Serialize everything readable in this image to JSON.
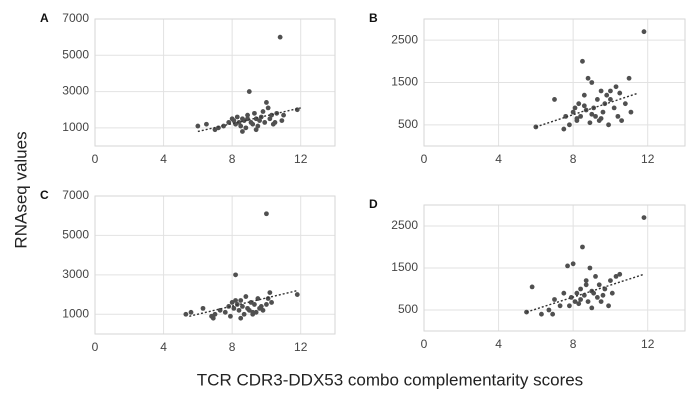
{
  "figure": {
    "ylabel": "RNAseq values",
    "xlabel": "TCR CDR3-DDX53 combo complementarity scores"
  },
  "chart_data": [
    {
      "type": "scatter",
      "title": "A",
      "color": "#505050",
      "grid": true,
      "xlim": [
        0,
        14
      ],
      "xticks": [
        0,
        4,
        8,
        12
      ],
      "ylim": [
        0,
        7000
      ],
      "yticks": [
        1000,
        3000,
        5000,
        7000
      ],
      "x": [
        6,
        6.5,
        7.2,
        7.5,
        7.8,
        8,
        8.1,
        8.2,
        8.3,
        8.4,
        8.5,
        8.6,
        8.7,
        8.8,
        8.9,
        9,
        9.1,
        9.2,
        9.3,
        9.4,
        9.5,
        9.6,
        9.7,
        9.8,
        9.9,
        10,
        10.1,
        10.2,
        10.3,
        10.5,
        10.6,
        10.8,
        10.9,
        11,
        11.8,
        7,
        8.6,
        9.4,
        10.4,
        8.9
      ],
      "values": [
        1100,
        1200,
        1000,
        1100,
        1300,
        1500,
        1400,
        1200,
        1600,
        1300,
        1100,
        1500,
        1400,
        1000,
        1700,
        3000,
        1300,
        1200,
        1800,
        1500,
        1100,
        1400,
        1600,
        1900,
        1300,
        2400,
        2100,
        1500,
        1700,
        1300,
        1800,
        6000,
        1400,
        1700,
        2000,
        900,
        800,
        900,
        1200,
        1500
      ],
      "trendline": {
        "x": [
          6,
          12
        ],
        "values": [
          800,
          2100
        ]
      }
    },
    {
      "type": "scatter",
      "title": "B",
      "color": "#505050",
      "grid": true,
      "xlim": [
        0,
        14
      ],
      "xticks": [
        0,
        4,
        8,
        12
      ],
      "ylim": [
        0,
        3000
      ],
      "yticks": [
        500,
        1500,
        2500
      ],
      "x": [
        6,
        7,
        7.5,
        7.8,
        8,
        8.1,
        8.2,
        8.3,
        8.4,
        8.5,
        8.6,
        8.7,
        8.8,
        8.9,
        9,
        9.1,
        9.2,
        9.3,
        9.4,
        9.5,
        9.6,
        9.7,
        9.8,
        9.9,
        10,
        10.2,
        10.3,
        10.4,
        10.5,
        10.6,
        10.8,
        11,
        11.1,
        11.8,
        8.2,
        9,
        8.6,
        7.6,
        10,
        9.5
      ],
      "values": [
        450,
        1100,
        400,
        500,
        800,
        900,
        600,
        1000,
        700,
        2000,
        1200,
        850,
        1600,
        550,
        1500,
        900,
        700,
        1100,
        600,
        1300,
        800,
        1000,
        1200,
        500,
        1100,
        900,
        1400,
        700,
        1250,
        600,
        1000,
        1600,
        800,
        2700,
        650,
        750,
        950,
        700,
        1300,
        650
      ],
      "trendline": {
        "x": [
          6,
          11.5
        ],
        "values": [
          450,
          1250
        ]
      }
    },
    {
      "type": "scatter",
      "title": "C",
      "color": "#505050",
      "grid": true,
      "xlim": [
        0,
        14
      ],
      "xticks": [
        0,
        4,
        8,
        12
      ],
      "ylim": [
        0,
        7000
      ],
      "yticks": [
        1000,
        3000,
        5000,
        7000
      ],
      "x": [
        5.3,
        5.6,
        6.3,
        6.8,
        7,
        7.3,
        7.6,
        7.8,
        8,
        8.1,
        8.2,
        8.3,
        8.4,
        8.5,
        8.6,
        8.7,
        8.8,
        8.9,
        9,
        9.1,
        9.2,
        9.3,
        9.4,
        9.5,
        9.6,
        9.8,
        10,
        10,
        10.1,
        10.2,
        10.3,
        11.8,
        7.9,
        8.5,
        9.2,
        6.9,
        8.2,
        9.7
      ],
      "values": [
        1000,
        1100,
        1300,
        900,
        1000,
        1200,
        1100,
        1400,
        1600,
        1300,
        3000,
        1500,
        1200,
        1700,
        1400,
        1000,
        1900,
        1300,
        1200,
        1600,
        1000,
        1500,
        1100,
        1800,
        1300,
        1200,
        6100,
        1500,
        1800,
        2100,
        1600,
        2000,
        900,
        800,
        1100,
        800,
        1700,
        1400
      ],
      "trendline": {
        "x": [
          5.5,
          11.8
        ],
        "values": [
          900,
          2200
        ]
      }
    },
    {
      "type": "scatter",
      "title": "D",
      "color": "#505050",
      "grid": true,
      "xlim": [
        0,
        14
      ],
      "xticks": [
        0,
        4,
        8,
        12
      ],
      "ylim": [
        0,
        3000
      ],
      "yticks": [
        500,
        1500,
        2500
      ],
      "x": [
        5.5,
        5.8,
        6.3,
        6.7,
        7,
        7.3,
        7.5,
        7.7,
        7.9,
        8,
        8.1,
        8.2,
        8.3,
        8.4,
        8.5,
        8.6,
        8.7,
        8.8,
        8.9,
        9,
        9.1,
        9.2,
        9.3,
        9.4,
        9.5,
        9.7,
        9.9,
        10,
        10.1,
        10.3,
        10.5,
        11.8,
        7.8,
        8.4,
        9,
        6.9,
        8.7,
        9.6
      ],
      "values": [
        450,
        1050,
        400,
        500,
        750,
        600,
        900,
        1550,
        800,
        1600,
        700,
        900,
        650,
        1000,
        2000,
        850,
        1200,
        700,
        1500,
        550,
        900,
        1300,
        800,
        1100,
        700,
        1000,
        600,
        1200,
        900,
        1300,
        1350,
        2700,
        600,
        750,
        950,
        400,
        1100,
        850
      ],
      "trendline": {
        "x": [
          5.5,
          11.8
        ],
        "values": [
          450,
          1350
        ]
      }
    }
  ]
}
